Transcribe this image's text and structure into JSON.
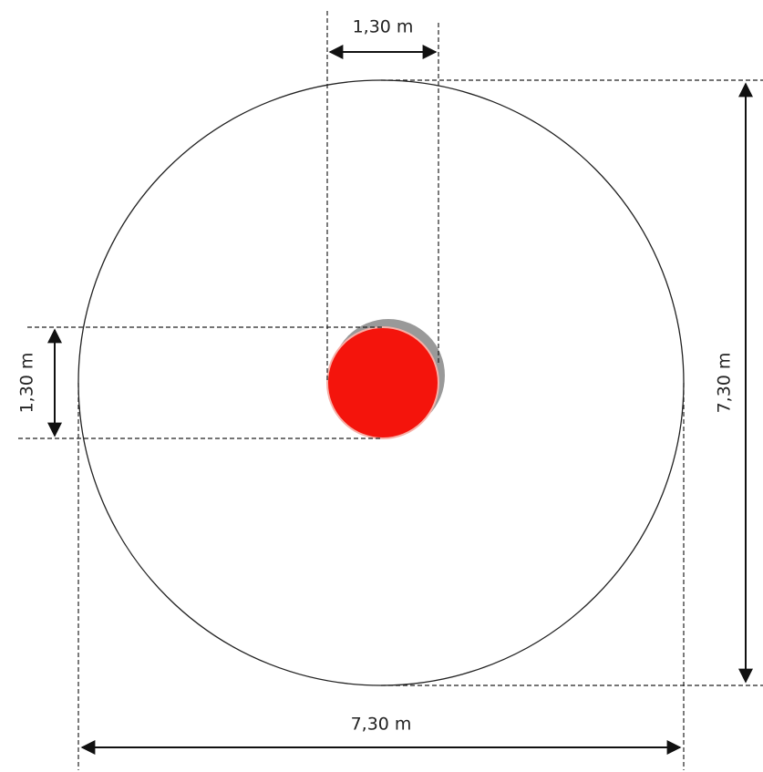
{
  "labels": {
    "inner_width": "1,30 m",
    "inner_height": "1,30 m",
    "outer_height": "7,30 m",
    "outer_width": "7,30 m"
  }
}
